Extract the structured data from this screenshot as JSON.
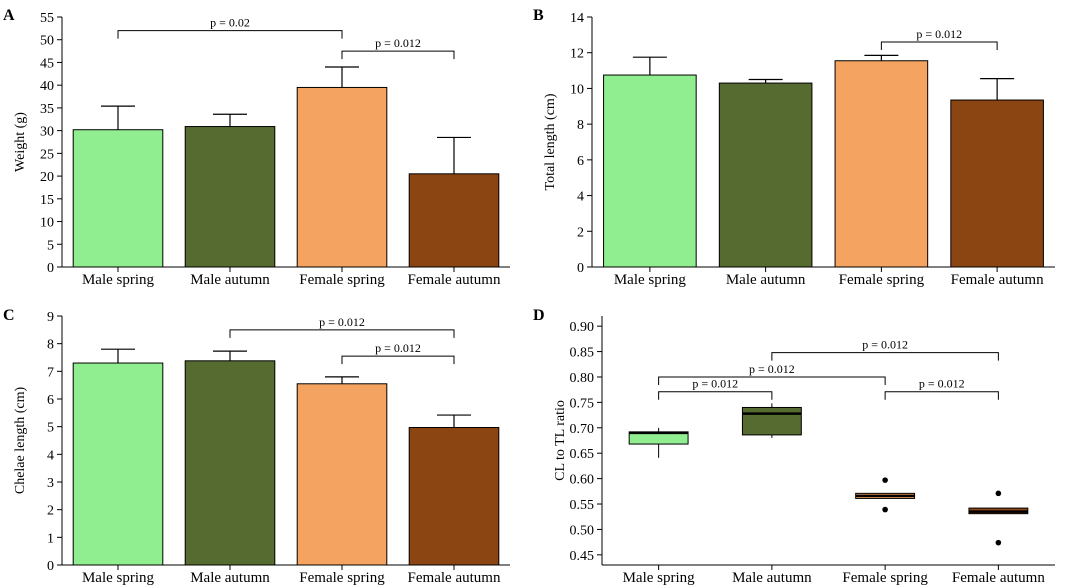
{
  "chart_data": [
    {
      "panel": "A",
      "type": "bar",
      "categories": [
        "Male spring",
        "Male autumn",
        "Female spring",
        "Female autumn"
      ],
      "values": [
        30.2,
        30.9,
        39.5,
        20.5
      ],
      "errors": [
        5.2,
        2.7,
        4.5,
        8.0
      ],
      "colors": [
        "#90ee90",
        "#556b2f",
        "#f4a460",
        "#8b4513"
      ],
      "ylabel": "Weight (g)",
      "ylim": [
        0,
        55
      ],
      "yticks": [
        0,
        5,
        10,
        15,
        20,
        25,
        30,
        35,
        40,
        45,
        50,
        55
      ],
      "comparisons": [
        {
          "from": 0,
          "to": 2,
          "y": 52,
          "label": "p = 0.02"
        },
        {
          "from": 2,
          "to": 3,
          "y": 47.5,
          "label": "p = 0.012"
        }
      ]
    },
    {
      "panel": "B",
      "type": "bar",
      "categories": [
        "Male spring",
        "Male autumn",
        "Female spring",
        "Female autumn"
      ],
      "values": [
        10.75,
        10.3,
        11.55,
        9.35
      ],
      "errors": [
        1.0,
        0.2,
        0.3,
        1.2
      ],
      "colors": [
        "#90ee90",
        "#556b2f",
        "#f4a460",
        "#8b4513"
      ],
      "ylabel": "Total length (cm)",
      "ylim": [
        0,
        14
      ],
      "yticks": [
        0,
        2,
        4,
        6,
        8,
        10,
        12,
        14
      ],
      "comparisons": [
        {
          "from": 2,
          "to": 3,
          "y": 12.6,
          "label": "p = 0.012"
        }
      ]
    },
    {
      "panel": "C",
      "type": "bar",
      "categories": [
        "Male spring",
        "Male autumn",
        "Female spring",
        "Female autumn"
      ],
      "values": [
        7.3,
        7.38,
        6.55,
        4.97
      ],
      "errors": [
        0.5,
        0.35,
        0.25,
        0.45
      ],
      "colors": [
        "#90ee90",
        "#556b2f",
        "#f4a460",
        "#8b4513"
      ],
      "ylabel": "Chelae length (cm)",
      "ylim": [
        0,
        9
      ],
      "yticks": [
        0,
        1,
        2,
        3,
        4,
        5,
        6,
        7,
        8,
        9
      ],
      "comparisons": [
        {
          "from": 1,
          "to": 3,
          "y": 8.5,
          "label": "p = 0.012"
        },
        {
          "from": 2,
          "to": 3,
          "y": 7.55,
          "label": "p = 0.012"
        }
      ]
    },
    {
      "panel": "D",
      "type": "box",
      "categories": [
        "Male spring",
        "Male autumn",
        "Female spring",
        "Female autumn"
      ],
      "boxes": [
        {
          "q1": 0.668,
          "median": 0.69,
          "q3": 0.692,
          "whisker_low": 0.641,
          "whisker_high": 0.7,
          "outliers": []
        },
        {
          "q1": 0.686,
          "median": 0.728,
          "q3": 0.74,
          "whisker_low": 0.68,
          "whisker_high": 0.748,
          "outliers": []
        },
        {
          "q1": 0.561,
          "median": 0.566,
          "q3": 0.571,
          "whisker_low": 0.561,
          "whisker_high": 0.571,
          "outliers": [
            0.597,
            0.539
          ]
        },
        {
          "q1": 0.531,
          "median": 0.535,
          "q3": 0.542,
          "whisker_low": 0.531,
          "whisker_high": 0.542,
          "outliers": [
            0.571,
            0.474
          ]
        }
      ],
      "colors": [
        "#90ee90",
        "#556b2f",
        "#f4a460",
        "#8b4513"
      ],
      "ylabel": "CL to TL ratio",
      "ylim": [
        0.43,
        0.92
      ],
      "yticks": [
        0.45,
        0.5,
        0.55,
        0.6,
        0.65,
        0.7,
        0.75,
        0.8,
        0.85,
        0.9
      ],
      "ytick_labels": [
        "0.45",
        "0.50",
        "0.55",
        "0.60",
        "0.65",
        "0.70",
        "0.75",
        "0.80",
        "0.85",
        "0.90"
      ],
      "comparisons": [
        {
          "from": 1,
          "to": 3,
          "y": 0.848,
          "label": "p = 0.012"
        },
        {
          "from": 0,
          "to": 2,
          "y": 0.8,
          "label": "p = 0.012"
        },
        {
          "from": 0,
          "to": 1,
          "y": 0.771,
          "label": "p = 0.012"
        },
        {
          "from": 2,
          "to": 3,
          "y": 0.771,
          "label": "p = 0.012"
        }
      ]
    }
  ]
}
